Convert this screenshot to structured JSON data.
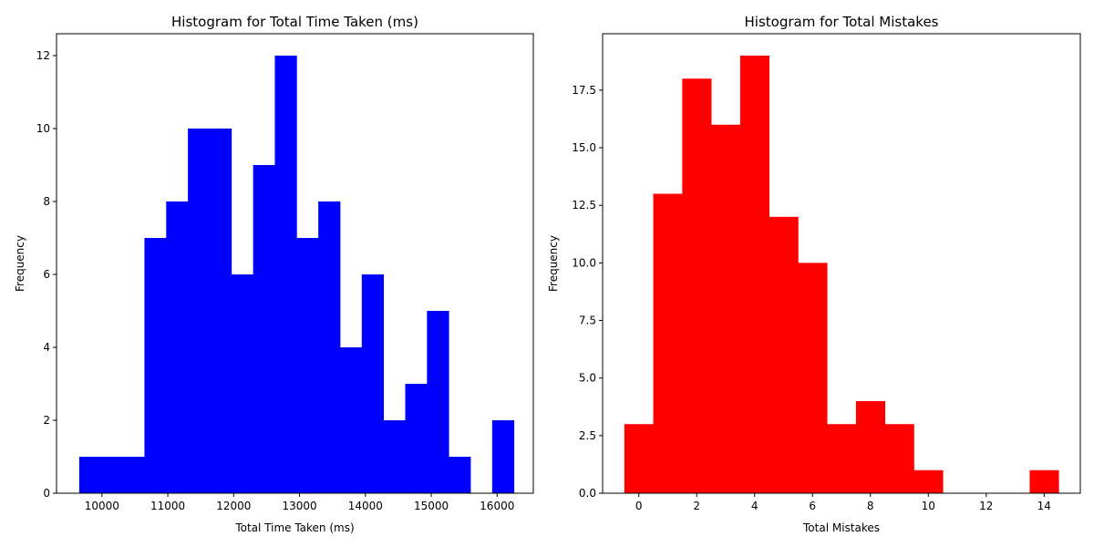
{
  "chart_data": [
    {
      "type": "bar",
      "title": "Histogram for Total Time Taken (ms)",
      "xlabel": "Total Time Taken (ms)",
      "ylabel": "Frequency",
      "color": "#0000ff",
      "xlim": [
        9310,
        16550
      ],
      "ylim": [
        0,
        12.6
      ],
      "xticks": [
        10000,
        11000,
        12000,
        13000,
        14000,
        15000,
        16000
      ],
      "yticks": [
        0,
        2,
        4,
        6,
        8,
        10,
        12
      ],
      "ytick_decimals": 0,
      "bins": [
        {
          "x0": 9655,
          "x1": 9985,
          "count": 1
        },
        {
          "x0": 9985,
          "x1": 10315,
          "count": 1
        },
        {
          "x0": 10315,
          "x1": 10645,
          "count": 1
        },
        {
          "x0": 10645,
          "x1": 10975,
          "count": 7
        },
        {
          "x0": 10975,
          "x1": 11305,
          "count": 8
        },
        {
          "x0": 11305,
          "x1": 11635,
          "count": 10
        },
        {
          "x0": 11635,
          "x1": 11965,
          "count": 10
        },
        {
          "x0": 11965,
          "x1": 12295,
          "count": 6
        },
        {
          "x0": 12295,
          "x1": 12625,
          "count": 9
        },
        {
          "x0": 12625,
          "x1": 12955,
          "count": 12
        },
        {
          "x0": 12955,
          "x1": 13285,
          "count": 7
        },
        {
          "x0": 13285,
          "x1": 13615,
          "count": 8
        },
        {
          "x0": 13615,
          "x1": 13945,
          "count": 4
        },
        {
          "x0": 13945,
          "x1": 14275,
          "count": 6
        },
        {
          "x0": 14275,
          "x1": 14605,
          "count": 2
        },
        {
          "x0": 14605,
          "x1": 14935,
          "count": 3
        },
        {
          "x0": 14935,
          "x1": 15265,
          "count": 5
        },
        {
          "x0": 15265,
          "x1": 15595,
          "count": 1
        },
        {
          "x0": 15595,
          "x1": 15925,
          "count": 0
        },
        {
          "x0": 15925,
          "x1": 16255,
          "count": 2
        }
      ]
    },
    {
      "type": "bar",
      "title": "Histogram for Total Mistakes",
      "xlabel": "Total Mistakes",
      "ylabel": "Frequency",
      "color": "#ff0000",
      "xlim": [
        -1.25,
        15.25
      ],
      "ylim": [
        0,
        19.95
      ],
      "xticks": [
        0,
        2,
        4,
        6,
        8,
        10,
        12,
        14
      ],
      "yticks": [
        0,
        2.5,
        5,
        7.5,
        10,
        12.5,
        15,
        17.5
      ],
      "ytick_decimals": 1,
      "bins": [
        {
          "x0": -0.5,
          "x1": 0.5,
          "count": 3
        },
        {
          "x0": 0.5,
          "x1": 1.5,
          "count": 13
        },
        {
          "x0": 1.5,
          "x1": 2.5,
          "count": 18
        },
        {
          "x0": 2.5,
          "x1": 3.5,
          "count": 16
        },
        {
          "x0": 3.5,
          "x1": 4.5,
          "count": 19
        },
        {
          "x0": 4.5,
          "x1": 5.5,
          "count": 12
        },
        {
          "x0": 5.5,
          "x1": 6.5,
          "count": 10
        },
        {
          "x0": 6.5,
          "x1": 7.5,
          "count": 3
        },
        {
          "x0": 7.5,
          "x1": 8.5,
          "count": 4
        },
        {
          "x0": 8.5,
          "x1": 9.5,
          "count": 3
        },
        {
          "x0": 9.5,
          "x1": 10.5,
          "count": 1
        },
        {
          "x0": 10.5,
          "x1": 11.5,
          "count": 0
        },
        {
          "x0": 11.5,
          "x1": 12.5,
          "count": 0
        },
        {
          "x0": 12.5,
          "x1": 13.5,
          "count": 0
        },
        {
          "x0": 13.5,
          "x1": 14.5,
          "count": 1
        }
      ]
    }
  ]
}
